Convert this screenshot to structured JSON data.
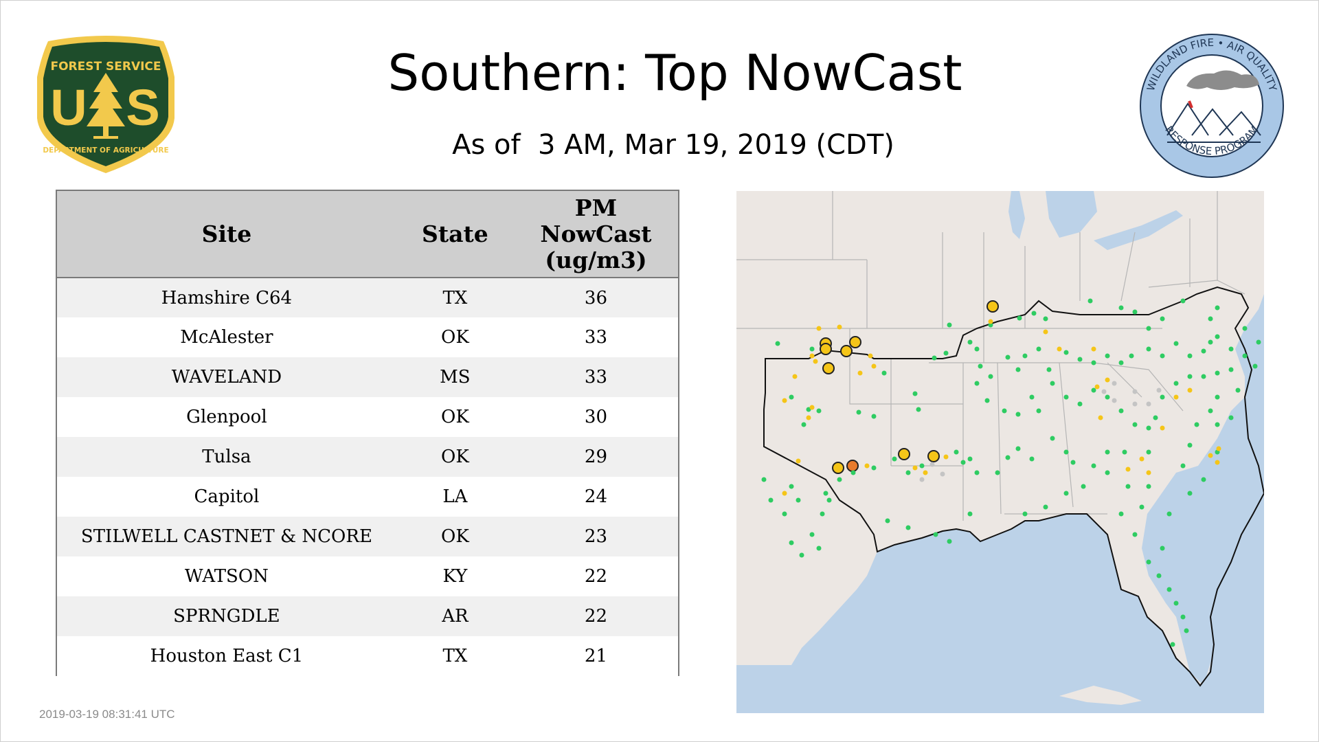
{
  "page": {
    "title": "Southern: Top NowCast",
    "subtitle": "As of  3 AM, Mar 19, 2019 (CDT)",
    "footer_timestamp": "2019-03-19 08:31:41 UTC"
  },
  "logos": {
    "forest_service": {
      "top_text": "FOREST SERVICE",
      "letters": "US",
      "bottom_text": "DEPARTMENT OF AGRICULTURE",
      "colors": {
        "green": "#1e4d2b",
        "gold": "#f2c94c"
      }
    },
    "wildland_fire": {
      "top_text": "WILDLAND FIRE • AIR QUALITY",
      "bottom_text": "RESPONSE PROGRAM",
      "colors": {
        "ring": "#a9c7e6",
        "dark": "#1f3654"
      }
    }
  },
  "table": {
    "headers": [
      "Site",
      "State",
      "PM\nNowCast\n(ug/m3)"
    ],
    "rows": [
      {
        "site": "Hamshire C64",
        "state": "TX",
        "value": "36"
      },
      {
        "site": "McAlester",
        "state": "OK",
        "value": "33"
      },
      {
        "site": "WAVELAND",
        "state": "MS",
        "value": "33"
      },
      {
        "site": "Glenpool",
        "state": "OK",
        "value": "30"
      },
      {
        "site": "Tulsa",
        "state": "OK",
        "value": "29"
      },
      {
        "site": "Capitol",
        "state": "LA",
        "value": "24"
      },
      {
        "site": "STILWELL CASTNET & NCORE",
        "state": "OK",
        "value": "23"
      },
      {
        "site": "WATSON",
        "state": "KY",
        "value": "22"
      },
      {
        "site": "SPRNGDLE",
        "state": "AR",
        "value": "22"
      },
      {
        "site": "Houston East C1",
        "state": "TX",
        "value": "21"
      }
    ]
  },
  "map": {
    "colors": {
      "land": "#ece7e3",
      "water": "#bcd2e8",
      "border": "#b5b5b5",
      "region_outline": "#111111",
      "good": "#2ecc62",
      "moderate": "#f5c518",
      "usg": "#e87b2c",
      "no_data": "#c4c4c4"
    }
  }
}
